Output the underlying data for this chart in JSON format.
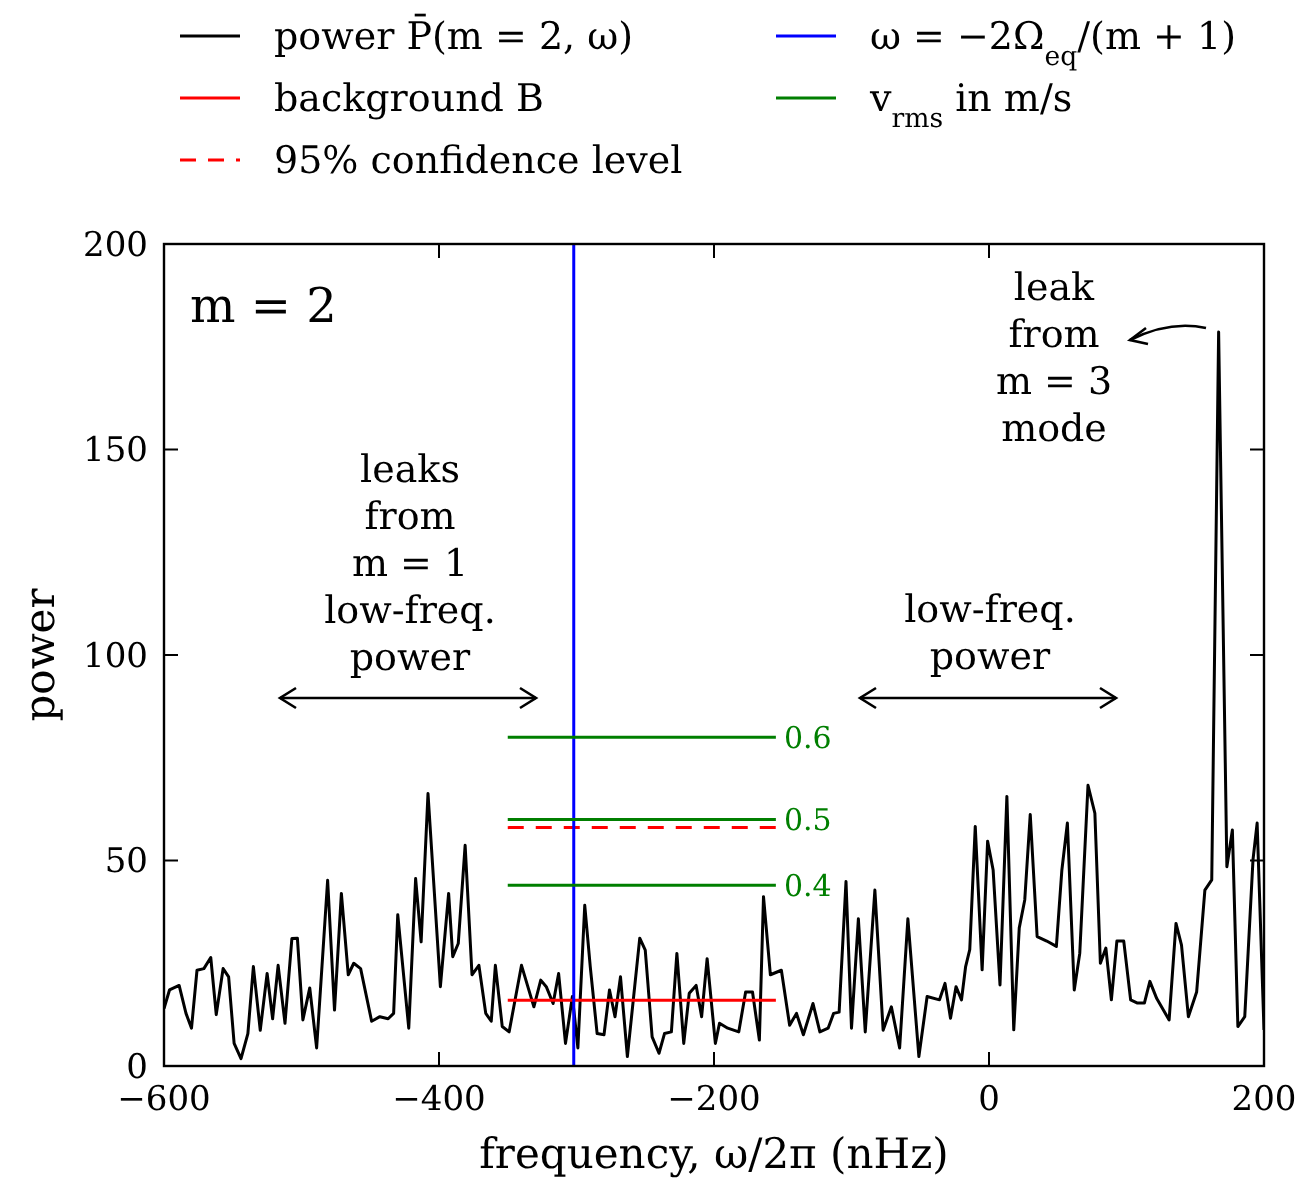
{
  "chart_data": {
    "type": "line",
    "xlabel": "frequency, ω/2π (nHz)",
    "ylabel": "power",
    "xlim": [
      -600,
      200
    ],
    "ylim": [
      0,
      200
    ],
    "xticks": [
      {
        "value": -600,
        "label": "−600"
      },
      {
        "value": -400,
        "label": "−400"
      },
      {
        "value": -200,
        "label": "−200"
      },
      0,
      200
    ],
    "yticks": [
      0,
      50,
      100,
      150,
      200
    ],
    "grid": false,
    "legend": "top",
    "marker": "none",
    "annotations": [
      "m = 2",
      "leaks\nfrom\nm = 1\nlow-freq.\npower",
      "low-freq.\npower",
      "leak\nfrom\nm = 3\nmode",
      "0.4",
      "0.5",
      "0.6"
    ],
    "series": [
      {
        "name": "power P̄(m = 2, ω)",
        "color": "#000000",
        "x": [
          -600,
          -596,
          -589,
          -584,
          -580,
          -576,
          -571,
          -566,
          -562,
          -557,
          -553,
          -549,
          -544,
          -539,
          -535,
          -530,
          -525,
          -521,
          -517,
          -512,
          -507,
          -503,
          -499,
          -494,
          -489,
          -481,
          -476,
          -471,
          -466,
          -462,
          -457,
          -449,
          -443,
          -437,
          -433,
          -430,
          -422,
          -417,
          -413,
          -408,
          -399,
          -393,
          -390,
          -386,
          -381,
          -376,
          -371,
          -366,
          -362,
          -359,
          -354,
          -349,
          -340,
          -331,
          -326,
          -322,
          -317,
          -313,
          -308,
          -303,
          -299,
          -294,
          -290,
          -285,
          -280,
          -276,
          -272,
          -268,
          -263,
          -254,
          -250,
          -245,
          -240,
          -236,
          -231,
          -227,
          -222,
          -218,
          -213,
          -209,
          -205,
          -199,
          -196,
          -190,
          -182,
          -177,
          -172,
          -167,
          -164,
          -159,
          -151,
          -145,
          -140,
          -135,
          -128,
          -123,
          -117,
          -113,
          -109,
          -104,
          -100,
          -95,
          -90,
          -83,
          -77,
          -71,
          -65,
          -59,
          -51,
          -45,
          -36,
          -32,
          -28,
          -24,
          -20,
          -17,
          -14,
          -10,
          -5,
          -1,
          3,
          8,
          13,
          18,
          22,
          26,
          30,
          35,
          42,
          49,
          53,
          57,
          62,
          66,
          72,
          77,
          81,
          85,
          89,
          93,
          98,
          103,
          108,
          113,
          117,
          122,
          131,
          136,
          140,
          145,
          151,
          157,
          162,
          167,
          173,
          177,
          181,
          186,
          192,
          195,
          200
        ],
        "values": [
          14,
          18.5,
          19.6,
          12.8,
          9.2,
          23.3,
          23.7,
          26.4,
          12.5,
          23.7,
          21.7,
          5.5,
          1.8,
          7.9,
          24.2,
          8.7,
          22.5,
          11.5,
          24.5,
          10.4,
          31,
          31.1,
          11.2,
          19,
          4.4,
          45.2,
          13.6,
          42,
          22.2,
          25,
          23.7,
          10.9,
          12,
          11.5,
          12.8,
          36.8,
          9.2,
          45.6,
          30.2,
          66.3,
          19.3,
          42,
          26.6,
          29.8,
          53.7,
          22.2,
          24.5,
          12.8,
          10.9,
          24.5,
          9.6,
          8.3,
          24.5,
          14.4,
          20.9,
          19.3,
          15.2,
          22.5,
          5.5,
          16.9,
          4.4,
          39.1,
          24.2,
          7.9,
          7.6,
          18.5,
          12,
          21.7,
          2.3,
          31.1,
          28.2,
          7.1,
          3.1,
          7.9,
          8.3,
          27.4,
          5.5,
          17.7,
          19.6,
          12,
          26.1,
          5.5,
          10.4,
          9.2,
          8.3,
          18,
          18,
          6.3,
          41.2,
          22.2,
          23.3,
          9.9,
          12.8,
          7.6,
          15.2,
          8.3,
          9.2,
          12.8,
          13.1,
          44.9,
          9.2,
          35.8,
          8.3,
          42.8,
          8.7,
          14.4,
          4.4,
          35.8,
          2.3,
          16.9,
          16.1,
          20.1,
          11.6,
          19.3,
          16.1,
          24.2,
          28.3,
          58.3,
          23.4,
          54.7,
          47.7,
          19.7,
          65.6,
          8.8,
          33.6,
          40.4,
          61.2,
          31.5,
          30.4,
          29.1,
          47.7,
          59.1,
          18.5,
          27.4,
          68.3,
          61.5,
          25,
          28.7,
          16.1,
          30.4,
          30.4,
          16.1,
          15.3,
          15.3,
          20.6,
          16.4,
          11.2,
          34.7,
          29.4,
          12,
          18,
          42.8,
          45.3,
          178.6,
          48.5,
          57.4,
          9.6,
          12,
          50.2,
          59.1,
          8.8
        ]
      },
      {
        "name": "background B",
        "color": "#ff0000",
        "x": [
          -350,
          -155
        ],
        "values": [
          16,
          16
        ]
      },
      {
        "name": "95% confidence level",
        "color": "#ff0000",
        "line_style": "dashed",
        "x": [
          -350,
          -155
        ],
        "values": [
          58,
          58
        ]
      },
      {
        "name": "ω = −2Ω$_{eq}$/(m + 1)",
        "color": "#0000ff",
        "x": [
          -302,
          -302
        ],
        "values": [
          0,
          200
        ]
      },
      {
        "name": "v$_{rms}$ in m/s",
        "color": "#007f00",
        "x": [
          -350,
          -155
        ],
        "values": [
          44,
          44
        ]
      },
      {
        "color": "#007f00",
        "x": [
          -350,
          -155
        ],
        "values": [
          60,
          60
        ]
      },
      {
        "color": "#007f00",
        "x": [
          -350,
          -155
        ],
        "values": [
          80,
          80
        ]
      }
    ]
  }
}
